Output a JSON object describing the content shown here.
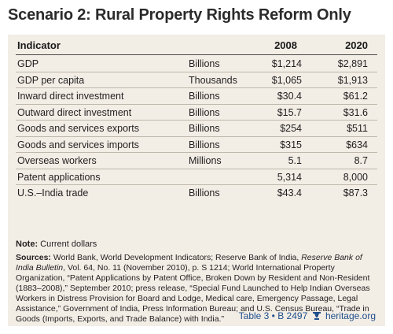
{
  "title": "Scenario 2: Rural Property Rights Reform Only",
  "table": {
    "headers": {
      "indicator": "Indicator",
      "unit": "",
      "y2008": "2008",
      "y2020": "2020"
    },
    "rows": [
      {
        "indicator": "GDP",
        "unit": "Billions",
        "y2008": "$1,214",
        "y2020": "$2,891"
      },
      {
        "indicator": "GDP per capita",
        "unit": "Thousands",
        "y2008": "$1,065",
        "y2020": "$1,913"
      },
      {
        "indicator": "Inward direct investment",
        "unit": "Billions",
        "y2008": "$30.4",
        "y2020": "$61.2"
      },
      {
        "indicator": "Outward direct investment",
        "unit": "Billions",
        "y2008": "$15.7",
        "y2020": "$31.6"
      },
      {
        "indicator": "Goods and services exports",
        "unit": "Billions",
        "y2008": "$254",
        "y2020": "$511"
      },
      {
        "indicator": "Goods and services imports",
        "unit": "Billions",
        "y2008": "$315",
        "y2020": "$634"
      },
      {
        "indicator": "Overseas workers",
        "unit": "Millions",
        "y2008": "5.1",
        "y2020": "8.7"
      },
      {
        "indicator": "Patent applications",
        "unit": "",
        "y2008": "5,314",
        "y2020": "8,000"
      },
      {
        "indicator": "U.S.–India trade",
        "unit": "Billions",
        "y2008": "$43.4",
        "y2020": "$87.3"
      }
    ]
  },
  "note": {
    "label": "Note:",
    "text": " Current dollars"
  },
  "sources": {
    "label": "Sources:",
    "part1": " World Bank, World Development Indicators; Reserve Bank of India, ",
    "italic": "Reserve Bank of India Bulletin",
    "part2": ", Vol. 64, No. 11 (November 2010), p. S 1214; World International Property Organization, “Patent Applications by Patent Office, Broken Down by Resident and Non-Resident (1883–2008),” September 2010; press release, “Special Fund Launched to Help Indian Overseas Workers in Distress Provision for Board and Lodge, Medical care, Emergency Passage, Legal Assistance,” Government of India, Press Information Bureau; and U.S. Census Bureau, “Trade in Goods (Imports, Exports, and Trade Balance) with India.”"
  },
  "footer": {
    "table_ref": "Table 3 • B 2497",
    "site": "heritage.org",
    "icon": "heritage-lamp-icon",
    "color": "#1f4e8c"
  }
}
